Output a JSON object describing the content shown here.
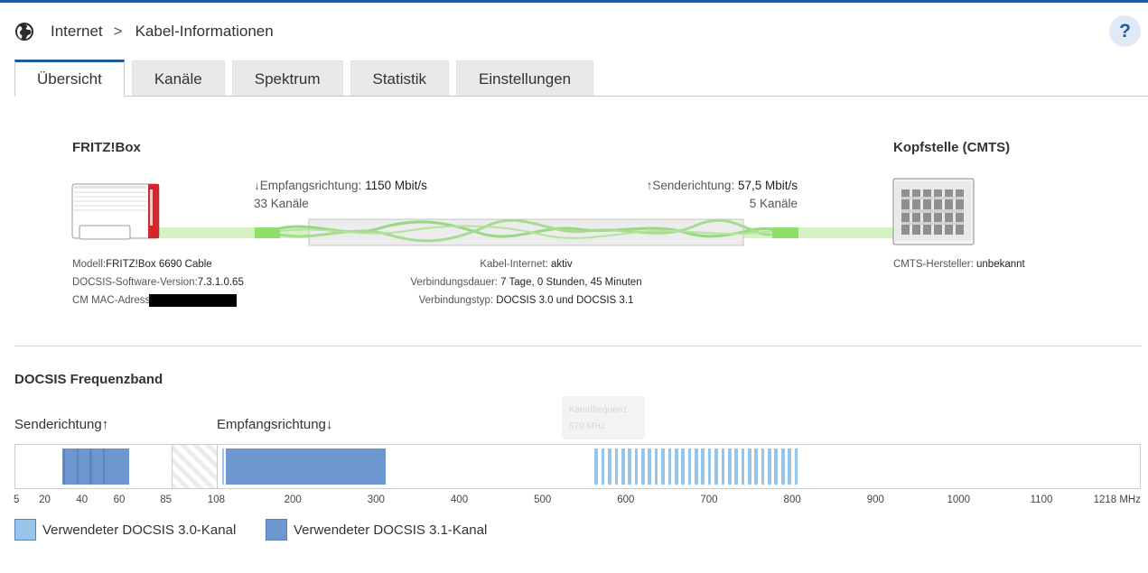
{
  "breadcrumb": {
    "section": "Internet",
    "separator": ">",
    "page": "Kabel-Informationen"
  },
  "help": {
    "label": "?"
  },
  "tabs": [
    {
      "label": "Übersicht",
      "active": true
    },
    {
      "label": "Kanäle",
      "active": false
    },
    {
      "label": "Spektrum",
      "active": false
    },
    {
      "label": "Statistik",
      "active": false
    },
    {
      "label": "Einstellungen",
      "active": false
    }
  ],
  "overview": {
    "fritzbox_title": "FRITZ!Box",
    "cmts_title": "Kopfstelle (CMTS)",
    "downstream": {
      "label": "↓Empfangsrichtung:",
      "rate": "1150 Mbit/s",
      "channels": "33 Kanäle"
    },
    "upstream": {
      "label": "↑Senderichtung:",
      "rate": "57,5 Mbit/s",
      "channels": "5 Kanäle"
    },
    "device_info": {
      "model_label": "Modell:",
      "model_value": "FRITZ!Box 6690 Cable",
      "docsis_label": "DOCSIS-Software-Version:",
      "docsis_value": "7.3.1.0.65",
      "mac_label": "CM MAC-Adresse:"
    },
    "connection_info": {
      "status_label": "Kabel-Internet:",
      "status_value": "aktiv",
      "duration_label": "Verbindungsdauer:",
      "duration_value": "7 Tage, 0 Stunden, 45 Minuten",
      "type_label": "Verbindungstyp:",
      "type_value": "DOCSIS 3.0 und DOCSIS 3.1"
    },
    "cmts_info": {
      "vendor_label": "CMTS-Hersteller:",
      "vendor_value": "unbekannt"
    }
  },
  "band": {
    "title": "DOCSIS Frequenzband",
    "upstream_label": "Senderichtung↑",
    "downstream_label": "Empfangsrichtung↓",
    "tooltip": {
      "title": "Kanalfrequenz",
      "value": "570 MHz"
    },
    "ticks": [
      "5",
      "20",
      "40",
      "60",
      "85",
      "108",
      "200",
      "300",
      "400",
      "500",
      "600",
      "700",
      "800",
      "900",
      "1000",
      "1100",
      "1218 MHz"
    ],
    "unit": "MHz",
    "colors": {
      "docsis30": "#98c5ea",
      "docsis31": "#6f97cf",
      "docsis31_dark": "#5a86c4"
    },
    "upstream_ofdma_mhz": [
      29,
      65
    ],
    "upstream_sc_qam_mhz": [
      [
        29.6,
        30.6
      ],
      [
        37.2,
        38.2
      ],
      [
        44,
        45
      ],
      [
        51,
        52
      ]
    ],
    "downstream_ofdm_mhz": [
      [
        119,
        311
      ]
    ],
    "downstream_sc_qam_mhz": [
      [
        114,
        115.5
      ],
      [
        562,
        566
      ],
      [
        570,
        574
      ],
      [
        578,
        582
      ],
      [
        586,
        590
      ],
      [
        594,
        598
      ],
      [
        602,
        606
      ],
      [
        610,
        614
      ],
      [
        618,
        622
      ],
      [
        626,
        630
      ],
      [
        634,
        638
      ],
      [
        642,
        646
      ],
      [
        650,
        654
      ],
      [
        658,
        662
      ],
      [
        666,
        670
      ],
      [
        674,
        678
      ],
      [
        682,
        686
      ],
      [
        690,
        694
      ],
      [
        698,
        702
      ],
      [
        706,
        710
      ],
      [
        714,
        718
      ],
      [
        722,
        726
      ],
      [
        730,
        734
      ],
      [
        738,
        742
      ],
      [
        746,
        750
      ],
      [
        754,
        758
      ],
      [
        762,
        766
      ],
      [
        770,
        774
      ],
      [
        778,
        782
      ],
      [
        786,
        790
      ],
      [
        794,
        798
      ],
      [
        802,
        806
      ]
    ]
  },
  "legend": {
    "docsis30": "Verwendeter DOCSIS 3.0-Kanal",
    "docsis31": "Verwendeter DOCSIS 3.1-Kanal"
  }
}
